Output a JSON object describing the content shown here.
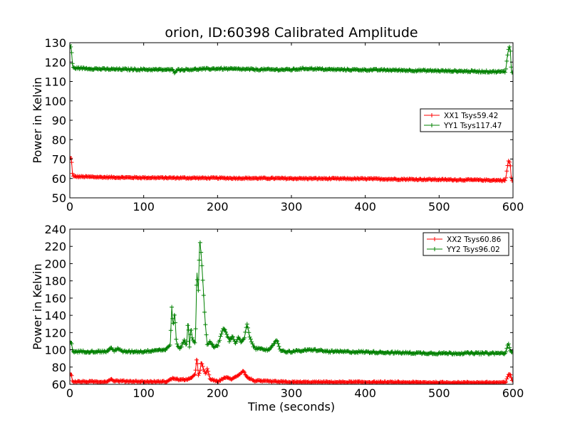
{
  "chart_data": [
    {
      "type": "line",
      "title": "orion, ID:60398 Calibrated Amplitude",
      "xlabel": "",
      "ylabel": "Power in Kelvin",
      "xlim": [
        0,
        600
      ],
      "ylim": [
        50,
        130
      ],
      "xticks": [
        0,
        100,
        200,
        300,
        400,
        500,
        600
      ],
      "yticks": [
        50,
        60,
        70,
        80,
        90,
        100,
        110,
        120,
        130
      ],
      "grid": false,
      "legend_position": "center-right",
      "marker": "+",
      "series": [
        {
          "name": "XX1 Tsys59.42",
          "color": "#ff0000",
          "baseline": 60.2,
          "noise": 0.35,
          "x": [
            0,
            2,
            4,
            50,
            100,
            140,
            200,
            250,
            300,
            350,
            400,
            450,
            500,
            550,
            590,
            592,
            594,
            596,
            598,
            600
          ],
          "y": [
            71,
            70,
            61,
            60.6,
            60.4,
            60.3,
            60.2,
            60.1,
            60.0,
            59.9,
            59.8,
            59.6,
            59.4,
            59.2,
            59.0,
            65,
            69,
            68,
            59,
            58.5
          ]
        },
        {
          "name": "YY1 Tsys117.47",
          "color": "#008000",
          "baseline": 116.3,
          "noise": 0.45,
          "x": [
            0,
            2,
            4,
            50,
            100,
            140,
            142,
            144,
            200,
            250,
            300,
            320,
            350,
            400,
            450,
            500,
            550,
            590,
            592,
            594,
            596,
            598,
            600
          ],
          "y": [
            129,
            127,
            117,
            116.3,
            116.2,
            116.0,
            114.5,
            116.0,
            116.6,
            116.2,
            116.1,
            116.7,
            116.2,
            116.0,
            115.8,
            115.5,
            115.2,
            115.0,
            122,
            127,
            128,
            115,
            114
          ]
        }
      ]
    },
    {
      "type": "line",
      "title": "",
      "xlabel": "Time (seconds)",
      "ylabel": "Power in Kelvin",
      "xlim": [
        0,
        600
      ],
      "ylim": [
        60,
        240
      ],
      "xticks": [
        0,
        100,
        200,
        300,
        400,
        500,
        600
      ],
      "yticks": [
        60,
        80,
        100,
        120,
        140,
        160,
        180,
        200,
        220,
        240
      ],
      "grid": false,
      "legend_position": "top-right",
      "marker": "+",
      "series": [
        {
          "name": "XX2 Tsys60.86",
          "color": "#ff0000",
          "baseline": 62.5,
          "noise": 0.8,
          "x": [
            0,
            2,
            4,
            50,
            55,
            60,
            100,
            130,
            140,
            150,
            160,
            165,
            170,
            172,
            174,
            176,
            178,
            180,
            182,
            184,
            186,
            190,
            200,
            210,
            220,
            230,
            235,
            240,
            250,
            280,
            300,
            400,
            500,
            590,
            594,
            596,
            600
          ],
          "y": [
            73,
            71,
            63,
            63,
            66,
            64,
            63,
            63,
            67,
            65,
            66,
            67,
            73,
            93,
            70,
            74,
            86,
            80,
            75,
            72,
            78,
            66,
            63,
            68,
            66,
            72,
            76,
            68,
            64,
            63,
            62.5,
            62.5,
            62,
            62,
            71,
            72,
            62
          ]
        },
        {
          "name": "YY2 Tsys96.02",
          "color": "#008000",
          "baseline": 97.5,
          "noise": 1.2,
          "x": [
            0,
            2,
            4,
            50,
            55,
            60,
            65,
            70,
            100,
            120,
            130,
            136,
            138,
            140,
            142,
            144,
            146,
            150,
            155,
            158,
            160,
            162,
            164,
            166,
            168,
            170,
            172,
            174,
            176,
            178,
            180,
            182,
            184,
            186,
            190,
            195,
            200,
            205,
            208,
            212,
            216,
            220,
            224,
            228,
            232,
            236,
            240,
            244,
            248,
            252,
            260,
            270,
            275,
            280,
            285,
            290,
            300,
            330,
            350,
            400,
            450,
            500,
            550,
            590,
            594,
            596,
            600
          ],
          "y": [
            110,
            108,
            98,
            98,
            102,
            99,
            102,
            98,
            98,
            100,
            100,
            106,
            150,
            126,
            145,
            112,
            103,
            102,
            112,
            103,
            135,
            104,
            126,
            112,
            110,
            108,
            192,
            168,
            228,
            208,
            182,
            150,
            124,
            106,
            110,
            103,
            104,
            118,
            125,
            120,
            110,
            117,
            107,
            115,
            108,
            113,
            130,
            113,
            105,
            101,
            102,
            99,
            105,
            112,
            100,
            98,
            98,
            100,
            98,
            97.5,
            96.5,
            96,
            96,
            96,
            108,
            100,
            95
          ]
        }
      ]
    }
  ]
}
